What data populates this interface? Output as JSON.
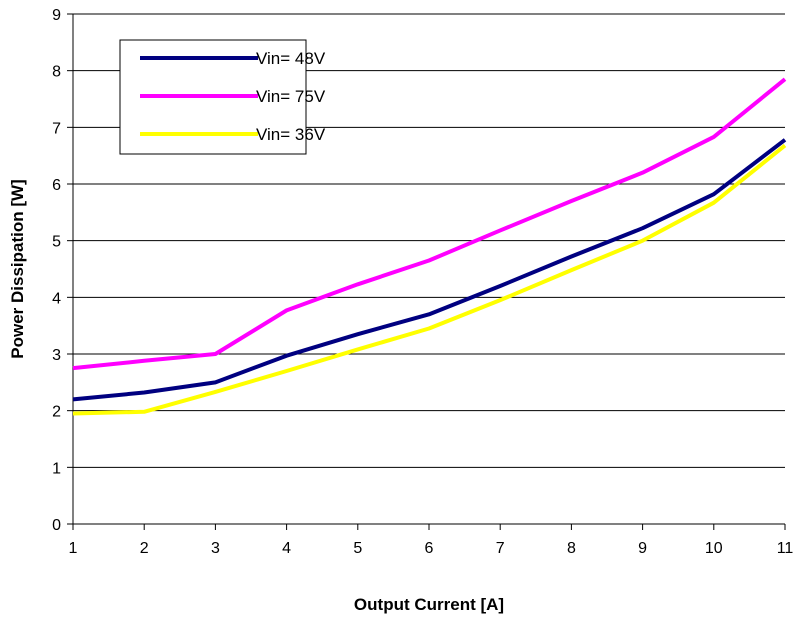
{
  "chart_data": {
    "type": "line",
    "title": "",
    "xlabel": "Output Current [A]",
    "ylabel": "Power Dissipation [W]",
    "x": [
      1,
      2,
      3,
      4,
      5,
      6,
      7,
      8,
      9,
      10,
      11
    ],
    "xlim": [
      1,
      11
    ],
    "ylim": [
      0,
      9
    ],
    "x_ticks": [
      "1",
      "2",
      "3",
      "4",
      "5",
      "6",
      "7",
      "8",
      "9",
      "10",
      "11"
    ],
    "y_ticks": [
      "0",
      "1",
      "2",
      "3",
      "4",
      "5",
      "6",
      "7",
      "8",
      "9"
    ],
    "grid": "horizontal",
    "legend_position": "top-left",
    "series": [
      {
        "name": "Vin= 48V",
        "color": "#000080",
        "values": [
          2.2,
          2.32,
          2.5,
          2.97,
          3.35,
          3.7,
          4.2,
          4.72,
          5.22,
          5.82,
          6.78
        ]
      },
      {
        "name": "Vin= 75V",
        "color": "#FF00FF",
        "values": [
          2.75,
          2.88,
          3.0,
          3.77,
          4.23,
          4.65,
          5.18,
          5.7,
          6.2,
          6.83,
          7.85
        ]
      },
      {
        "name": "Vin= 36V",
        "color": "#FFFF00",
        "values": [
          1.95,
          1.98,
          2.33,
          2.7,
          3.08,
          3.45,
          3.95,
          4.48,
          5.0,
          5.67,
          6.68
        ]
      }
    ]
  }
}
